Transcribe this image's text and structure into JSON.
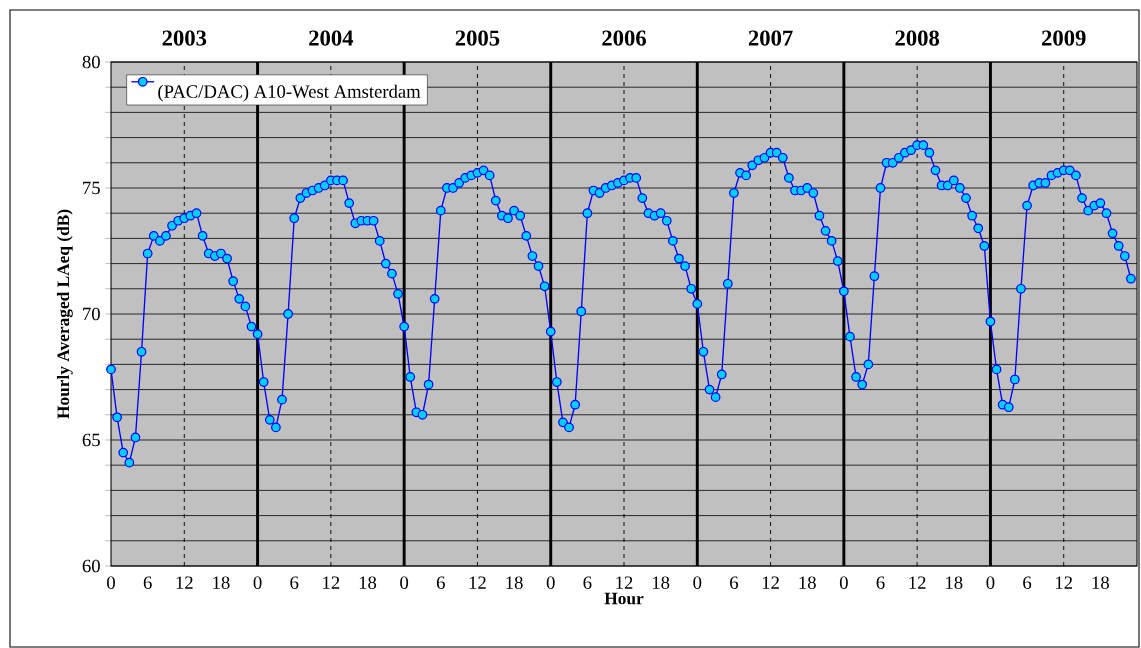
{
  "chart_data": {
    "type": "line",
    "xlabel": "Hour",
    "ylabel": "Hourly Averaged LAeq (dB)",
    "annotations": [
      "2003",
      "2004",
      "2005",
      "2006",
      "2007",
      "2008",
      "2009"
    ],
    "categories": [
      "0",
      null,
      null,
      null,
      null,
      null,
      "6",
      null,
      null,
      null,
      null,
      null,
      "12",
      null,
      null,
      null,
      null,
      null,
      "18",
      null,
      null,
      null,
      null,
      null,
      "0",
      null,
      null,
      null,
      null,
      null,
      "6",
      null,
      null,
      null,
      null,
      null,
      "12",
      null,
      null,
      null,
      null,
      null,
      "18",
      null,
      null,
      null,
      null,
      null,
      "0",
      null,
      null,
      null,
      null,
      null,
      "6",
      null,
      null,
      null,
      null,
      null,
      "12",
      null,
      null,
      null,
      null,
      null,
      "18",
      null,
      null,
      null,
      null,
      null,
      "0",
      null,
      null,
      null,
      null,
      null,
      "6",
      null,
      null,
      null,
      null,
      null,
      "12",
      null,
      null,
      null,
      null,
      null,
      "18",
      null,
      null,
      null,
      null,
      null,
      "0",
      null,
      null,
      null,
      null,
      null,
      "6",
      null,
      null,
      null,
      null,
      null,
      "12",
      null,
      null,
      null,
      null,
      null,
      "18",
      null,
      null,
      null,
      null,
      null,
      "0",
      null,
      null,
      null,
      null,
      null,
      "6",
      null,
      null,
      null,
      null,
      null,
      "12",
      null,
      null,
      null,
      null,
      null,
      "18",
      null,
      null,
      null,
      null,
      null,
      "0",
      null,
      null,
      null,
      null,
      null,
      "6",
      null,
      null,
      null,
      null,
      null,
      "12",
      null,
      null,
      null,
      null,
      null,
      "18",
      null,
      null,
      null,
      null,
      null
    ],
    "series": [
      {
        "name": "(PAC/DAC) A10-West Amsterdam",
        "color": "#0000ff",
        "values": [
          67.8,
          65.9,
          64.5,
          64.1,
          65.1,
          68.5,
          72.4,
          73.1,
          72.9,
          73.1,
          73.5,
          73.7,
          73.8,
          73.9,
          74.0,
          73.1,
          72.4,
          72.3,
          72.4,
          72.2,
          71.3,
          70.6,
          70.3,
          69.5,
          69.2,
          67.3,
          65.8,
          65.5,
          66.6,
          70.0,
          73.8,
          74.6,
          74.8,
          74.9,
          75.0,
          75.1,
          75.3,
          75.3,
          75.3,
          74.4,
          73.6,
          73.7,
          73.7,
          73.7,
          72.9,
          72.0,
          71.6,
          70.8,
          69.5,
          67.5,
          66.1,
          66.0,
          67.2,
          70.6,
          74.1,
          75.0,
          75.0,
          75.2,
          75.4,
          75.5,
          75.6,
          75.7,
          75.5,
          74.5,
          73.9,
          73.8,
          74.1,
          73.9,
          73.1,
          72.3,
          71.9,
          71.1,
          69.3,
          67.3,
          65.7,
          65.5,
          66.4,
          70.1,
          74.0,
          74.9,
          74.8,
          75.0,
          75.1,
          75.2,
          75.3,
          75.4,
          75.4,
          74.6,
          74.0,
          73.9,
          74.0,
          73.7,
          72.9,
          72.2,
          71.9,
          71.0,
          70.4,
          68.5,
          67.0,
          66.7,
          67.6,
          71.2,
          74.8,
          75.6,
          75.5,
          75.9,
          76.1,
          76.2,
          76.4,
          76.4,
          76.2,
          75.4,
          74.9,
          74.9,
          75.0,
          74.8,
          73.9,
          73.3,
          72.9,
          72.1,
          70.9,
          69.1,
          67.5,
          67.2,
          68.0,
          71.5,
          75.0,
          76.0,
          76.0,
          76.2,
          76.4,
          76.5,
          76.7,
          76.7,
          76.4,
          75.7,
          75.1,
          75.1,
          75.3,
          75.0,
          74.6,
          73.9,
          73.4,
          72.7,
          69.7,
          67.8,
          66.4,
          66.3,
          67.4,
          71.0,
          74.3,
          75.1,
          75.2,
          75.2,
          75.5,
          75.6,
          75.7,
          75.7,
          75.5,
          74.6,
          74.1,
          74.3,
          74.4,
          74.0,
          73.2,
          72.7,
          72.3,
          71.4
        ]
      }
    ],
    "ylim": [
      60,
      80
    ],
    "yticks": [
      60,
      {
        "value": 61,
        "label": null
      },
      {
        "value": 62,
        "label": null
      },
      {
        "value": 63,
        "label": null
      },
      {
        "value": 64,
        "label": null
      },
      65,
      {
        "value": 66,
        "label": null
      },
      {
        "value": 67,
        "label": null
      },
      {
        "value": 68,
        "label": null
      },
      {
        "value": 69,
        "label": null
      },
      70,
      {
        "value": 71,
        "label": null
      },
      {
        "value": 72,
        "label": null
      },
      {
        "value": 73,
        "label": null
      },
      {
        "value": 74,
        "label": null
      },
      75,
      {
        "value": 76,
        "label": null
      },
      {
        "value": 77,
        "label": null
      },
      {
        "value": 78,
        "label": null
      },
      {
        "value": 79,
        "label": null
      },
      80
    ],
    "grid": "y",
    "legend": "top left",
    "marker": "circle",
    "line_style": "solid"
  }
}
